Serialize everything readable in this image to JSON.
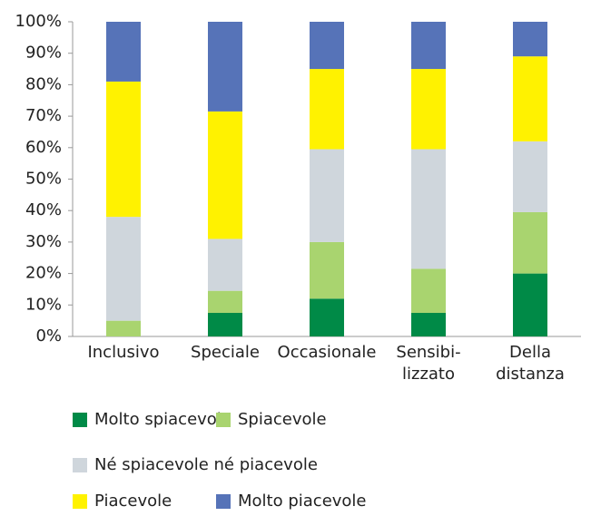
{
  "chart_data": {
    "type": "stacked_bar",
    "categories": [
      "Inclusivo",
      "Speciale",
      "Occasionale",
      "Sensibi-\nlizzato",
      "Della\ndistanza"
    ],
    "series": [
      {
        "name": "Molto spiacevole",
        "color": "#008a47",
        "values": [
          0,
          7.5,
          12,
          7.5,
          20
        ]
      },
      {
        "name": "Spiacevole",
        "color": "#a9d46f",
        "values": [
          5,
          7,
          18,
          14,
          19.5
        ]
      },
      {
        "name": "Né spiacevole né piacevole",
        "color": "#cfd6dc",
        "values": [
          33,
          16.5,
          29.5,
          38,
          22.5
        ]
      },
      {
        "name": "Piacevole",
        "color": "#fff200",
        "values": [
          43,
          40.5,
          25.5,
          25.5,
          27
        ]
      },
      {
        "name": "Molto piacevole",
        "color": "#5673b8",
        "values": [
          19,
          28.5,
          15,
          15,
          11
        ]
      }
    ],
    "ylim": [
      0,
      100
    ],
    "yticks": [
      {
        "value": 0,
        "label": "0%"
      },
      {
        "value": 10,
        "label": "10%"
      },
      {
        "value": 20,
        "label": "20%"
      },
      {
        "value": 30,
        "label": "30%"
      },
      {
        "value": 40,
        "label": "40%"
      },
      {
        "value": 50,
        "label": "50%"
      },
      {
        "value": 60,
        "label": "60%"
      },
      {
        "value": 70,
        "label": "70%"
      },
      {
        "value": 80,
        "label": "80%"
      },
      {
        "value": 90,
        "label": "90%"
      },
      {
        "value": 100,
        "label": "100%"
      }
    ]
  }
}
